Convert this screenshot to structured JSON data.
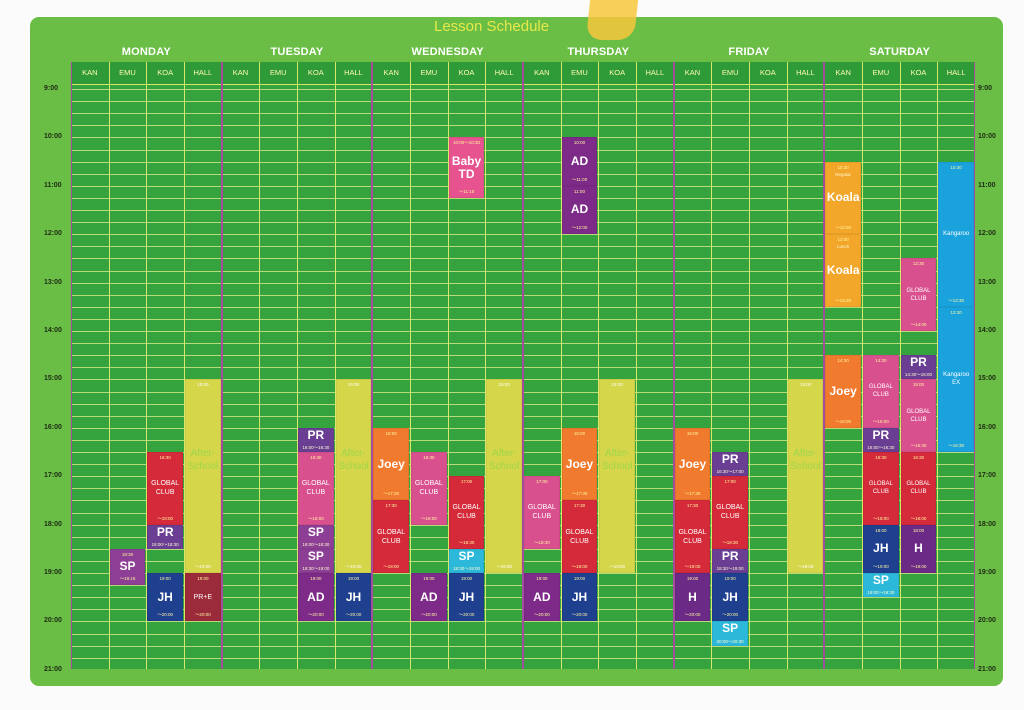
{
  "title": "Lesson Schedule",
  "days": [
    "MONDAY",
    "TUESDAY",
    "WEDNESDAY",
    "THURSDAY",
    "FRIDAY",
    "SATURDAY"
  ],
  "rooms": [
    "KAN",
    "EMU",
    "KOA",
    "HALL"
  ],
  "times": [
    "9:00",
    "10:00",
    "11:00",
    "12:00",
    "13:00",
    "14:00",
    "15:00",
    "16:00",
    "17:00",
    "18:00",
    "19:00",
    "20:00",
    "21:00"
  ],
  "colors": {
    "board": "#6bbe45",
    "grid": "#35a43e",
    "title": "#e7e84a",
    "day_divider": "#a34d9c",
    "SP": "#8c3f94",
    "JH": "#1f3f8f",
    "GLOBAL": "#d42a3a",
    "GLOBAL_PINK": "#d9508f",
    "PR": "#6a3f93",
    "AD": "#7d2a88",
    "AFTER": "#d5d64a",
    "JOEY": "#f07a2e",
    "KOALA": "#f2a62a",
    "KANGAROO": "#1aa2dc",
    "SP_CYAN": "#2cb9d9",
    "BABY": "#e6538f",
    "PRE": "#9b2b3b",
    "H": "#6a2a86"
  },
  "lessons": [
    {
      "d": 0,
      "r": 1,
      "s": 18.5,
      "e": 19.25,
      "c": "SP",
      "name": "SP",
      "st": "18:30",
      "en": "〜19:15"
    },
    {
      "d": 0,
      "r": 2,
      "s": 16.5,
      "e": 18.0,
      "c": "GLOBAL",
      "name": "GLOBAL\nCLUB",
      "size": "small",
      "st": "16:30",
      "en": "〜18:00"
    },
    {
      "d": 0,
      "r": 2,
      "s": 18.0,
      "e": 18.5,
      "c": "PR",
      "name": "PR",
      "sub": "18:00〜18:30"
    },
    {
      "d": 0,
      "r": 2,
      "s": 19.0,
      "e": 20.0,
      "c": "JH",
      "name": "JH",
      "st": "19:00",
      "en": "〜20:00"
    },
    {
      "d": 0,
      "r": 3,
      "s": 15.0,
      "e": 19.0,
      "c": "AFTER",
      "name": "After-\nSchool",
      "st": "15:00",
      "en": "〜19:00"
    },
    {
      "d": 0,
      "r": 3,
      "s": 19.0,
      "e": 20.0,
      "c": "PRE",
      "name": "PR+E",
      "size": "small",
      "st": "19:00",
      "en": "〜20:00"
    },
    {
      "d": 1,
      "r": 2,
      "s": 16.0,
      "e": 16.5,
      "c": "PR",
      "name": "PR",
      "sub": "16:00〜16:30"
    },
    {
      "d": 1,
      "r": 2,
      "s": 16.5,
      "e": 18.0,
      "c": "GLOBAL_PINK",
      "name": "GLOBAL\nCLUB",
      "size": "small",
      "st": "16:30",
      "en": "〜18:00"
    },
    {
      "d": 1,
      "r": 2,
      "s": 18.0,
      "e": 18.5,
      "c": "SP",
      "name": "SP",
      "sub": "18:00〜18:30"
    },
    {
      "d": 1,
      "r": 2,
      "s": 18.5,
      "e": 19.0,
      "c": "SP",
      "name": "SP",
      "sub": "18:30〜19:00"
    },
    {
      "d": 1,
      "r": 2,
      "s": 19.0,
      "e": 20.0,
      "c": "AD",
      "name": "AD",
      "st": "19:00",
      "en": "〜20:00"
    },
    {
      "d": 1,
      "r": 3,
      "s": 15.0,
      "e": 19.0,
      "c": "AFTER",
      "name": "After-\nSchool",
      "st": "15:00",
      "en": "〜19:00"
    },
    {
      "d": 1,
      "r": 3,
      "s": 19.0,
      "e": 20.0,
      "c": "JH",
      "name": "JH",
      "st": "19:00",
      "en": "〜20:00"
    },
    {
      "d": 2,
      "r": 0,
      "s": 16.0,
      "e": 17.5,
      "c": "JOEY",
      "name": "Joey",
      "st": "16:00",
      "en": "〜17:30"
    },
    {
      "d": 2,
      "r": 0,
      "s": 17.5,
      "e": 19.0,
      "c": "GLOBAL",
      "name": "GLOBAL\nCLUB",
      "size": "small",
      "st": "17:30",
      "en": "〜19:00"
    },
    {
      "d": 2,
      "r": 1,
      "s": 16.5,
      "e": 18.0,
      "c": "GLOBAL_PINK",
      "name": "GLOBAL\nCLUB",
      "size": "small",
      "st": "16:30",
      "en": "〜18:00"
    },
    {
      "d": 2,
      "r": 1,
      "s": 19.0,
      "e": 20.0,
      "c": "AD",
      "name": "AD",
      "st": "19:00",
      "en": "〜20:00"
    },
    {
      "d": 2,
      "r": 2,
      "s": 10.0,
      "e": 11.25,
      "c": "BABY",
      "name": "Baby\nTD",
      "st": "10:00〜10:30",
      "en": "〜11:15"
    },
    {
      "d": 2,
      "r": 2,
      "s": 17.0,
      "e": 18.5,
      "c": "GLOBAL",
      "name": "GLOBAL\nCLUB",
      "size": "small",
      "st": "17:00",
      "en": "〜18:30"
    },
    {
      "d": 2,
      "r": 2,
      "s": 18.5,
      "e": 19.0,
      "c": "SP_CYAN",
      "name": "SP",
      "sub": "18:30〜19:00"
    },
    {
      "d": 2,
      "r": 2,
      "s": 19.0,
      "e": 20.0,
      "c": "JH",
      "name": "JH",
      "st": "19:00",
      "en": "〜20:00"
    },
    {
      "d": 2,
      "r": 3,
      "s": 15.0,
      "e": 19.0,
      "c": "AFTER",
      "name": "After-\nSchool",
      "st": "15:00",
      "en": "〜19:00"
    },
    {
      "d": 3,
      "r": 0,
      "s": 17.0,
      "e": 18.5,
      "c": "GLOBAL_PINK",
      "name": "GLOBAL\nCLUB",
      "size": "small",
      "st": "17:00",
      "en": "〜18:30"
    },
    {
      "d": 3,
      "r": 0,
      "s": 19.0,
      "e": 20.0,
      "c": "AD",
      "name": "AD",
      "st": "19:00",
      "en": "〜20:00"
    },
    {
      "d": 3,
      "r": 1,
      "s": 10.0,
      "e": 11.0,
      "c": "AD",
      "name": "AD",
      "st": "10:00",
      "en": "〜11:00"
    },
    {
      "d": 3,
      "r": 1,
      "s": 11.0,
      "e": 12.0,
      "c": "AD",
      "name": "AD",
      "st": "11:00",
      "en": "〜12:00"
    },
    {
      "d": 3,
      "r": 1,
      "s": 16.0,
      "e": 17.5,
      "c": "JOEY",
      "name": "Joey",
      "st": "16:00",
      "en": "〜17:30"
    },
    {
      "d": 3,
      "r": 1,
      "s": 17.5,
      "e": 19.0,
      "c": "GLOBAL",
      "name": "GLOBAL\nCLUB",
      "size": "small",
      "st": "17:30",
      "en": "〜19:00"
    },
    {
      "d": 3,
      "r": 1,
      "s": 19.0,
      "e": 20.0,
      "c": "JH",
      "name": "JH",
      "st": "19:00",
      "en": "〜20:00"
    },
    {
      "d": 3,
      "r": 2,
      "s": 15.0,
      "e": 19.0,
      "c": "AFTER",
      "name": "After-\nSchool",
      "st": "15:00",
      "en": "〜19:00"
    },
    {
      "d": 4,
      "r": 0,
      "s": 16.0,
      "e": 17.5,
      "c": "JOEY",
      "name": "Joey",
      "st": "16:00",
      "en": "〜17:30"
    },
    {
      "d": 4,
      "r": 0,
      "s": 17.5,
      "e": 19.0,
      "c": "GLOBAL",
      "name": "GLOBAL\nCLUB",
      "size": "small",
      "st": "17:30",
      "en": "〜19:00"
    },
    {
      "d": 4,
      "r": 0,
      "s": 19.0,
      "e": 20.0,
      "c": "H",
      "name": "H",
      "st": "19:00",
      "en": "〜20:00"
    },
    {
      "d": 4,
      "r": 1,
      "s": 16.5,
      "e": 17.0,
      "c": "PR",
      "name": "PR",
      "sub": "16:30〜17:00"
    },
    {
      "d": 4,
      "r": 1,
      "s": 17.0,
      "e": 18.5,
      "c": "GLOBAL",
      "name": "GLOBAL\nCLUB",
      "size": "small",
      "st": "17:00",
      "en": "〜18:30"
    },
    {
      "d": 4,
      "r": 1,
      "s": 18.5,
      "e": 19.0,
      "c": "PR",
      "name": "PR",
      "sub": "18:30〜19:00"
    },
    {
      "d": 4,
      "r": 1,
      "s": 19.0,
      "e": 20.0,
      "c": "JH",
      "name": "JH",
      "st": "19:00",
      "en": "〜20:00"
    },
    {
      "d": 4,
      "r": 1,
      "s": 20.0,
      "e": 20.5,
      "c": "SP_CYAN",
      "name": "SP",
      "sub": "20:00〜20:30"
    },
    {
      "d": 4,
      "r": 3,
      "s": 15.0,
      "e": 19.0,
      "c": "AFTER",
      "name": "After-\nSchool",
      "st": "15:00",
      "en": "〜19:00"
    },
    {
      "d": 5,
      "r": 0,
      "s": 10.5,
      "e": 12.0,
      "c": "KOALA",
      "name": "Koala",
      "label": "Regular",
      "st": "10:30",
      "en": "〜12:00"
    },
    {
      "d": 5,
      "r": 0,
      "s": 12.0,
      "e": 13.5,
      "c": "KOALA",
      "name": "Koala",
      "label": "Lunch",
      "st": "12:00",
      "en": "〜13:30"
    },
    {
      "d": 5,
      "r": 0,
      "s": 14.5,
      "e": 16.0,
      "c": "JOEY",
      "name": "Joey",
      "st": "14:30",
      "en": "〜16:00"
    },
    {
      "d": 5,
      "r": 1,
      "s": 14.5,
      "e": 16.0,
      "c": "GLOBAL_PINK",
      "name": "GLOBAL\nCLUB",
      "size": "tiny",
      "st": "14:30",
      "en": "〜16:00"
    },
    {
      "d": 5,
      "r": 1,
      "s": 16.0,
      "e": 16.5,
      "c": "PR",
      "name": "PR",
      "sub": "16:00〜16:30"
    },
    {
      "d": 5,
      "r": 1,
      "s": 16.5,
      "e": 18.0,
      "c": "GLOBAL",
      "name": "GLOBAL\nCLUB",
      "size": "tiny",
      "st": "16:30",
      "en": "〜18:00"
    },
    {
      "d": 5,
      "r": 1,
      "s": 18.0,
      "e": 19.0,
      "c": "JH",
      "name": "JH",
      "st": "18:00",
      "en": "〜19:00"
    },
    {
      "d": 5,
      "r": 1,
      "s": 19.0,
      "e": 19.5,
      "c": "SP_CYAN",
      "name": "SP",
      "sub": "19:00〜19:30"
    },
    {
      "d": 5,
      "r": 2,
      "s": 12.5,
      "e": 14.0,
      "c": "GLOBAL_PINK",
      "name": "GLOBAL\nCLUB",
      "size": "tiny",
      "st": "12:30",
      "en": "〜14:00"
    },
    {
      "d": 5,
      "r": 2,
      "s": 14.5,
      "e": 15.0,
      "c": "PR",
      "name": "PR",
      "sub": "14:30〜15:00"
    },
    {
      "d": 5,
      "r": 2,
      "s": 15.0,
      "e": 16.5,
      "c": "GLOBAL_PINK",
      "name": "GLOBAL\nCLUB",
      "size": "tiny",
      "st": "15:00",
      "en": "〜16:30"
    },
    {
      "d": 5,
      "r": 2,
      "s": 16.5,
      "e": 18.0,
      "c": "GLOBAL",
      "name": "GLOBAL\nCLUB",
      "size": "tiny",
      "st": "16:30",
      "en": "〜18:00"
    },
    {
      "d": 5,
      "r": 2,
      "s": 18.0,
      "e": 19.0,
      "c": "H",
      "name": "H",
      "st": "18:00",
      "en": "〜19:00"
    },
    {
      "d": 5,
      "r": 3,
      "s": 10.5,
      "e": 13.5,
      "c": "KANGAROO",
      "name": "Kangaroo",
      "size": "tiny",
      "st": "10:30",
      "en": "〜13:30"
    },
    {
      "d": 5,
      "r": 3,
      "s": 13.5,
      "e": 16.5,
      "c": "KANGAROO",
      "name": "Kangaroo\nEX",
      "size": "tiny",
      "st": "13:30",
      "en": "〜16:30"
    }
  ]
}
